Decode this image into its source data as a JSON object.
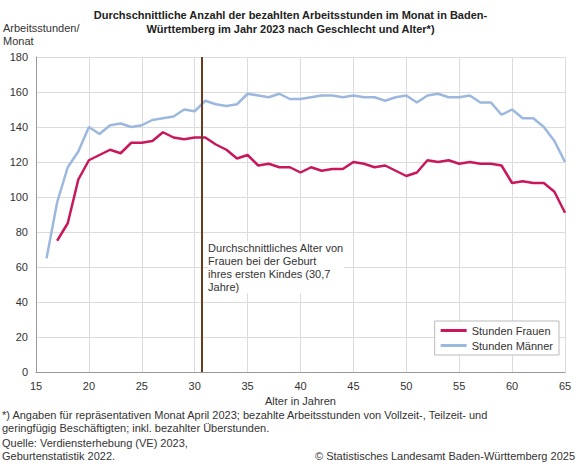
{
  "chart_data": {
    "type": "line",
    "title": "Durchschnittliche Anzahl der bezahlten Arbeitsstunden im Monat in Baden-\nWürttemberg im Jahr 2023 nach Geschlecht und Alter*)",
    "y_label": "Arbeitsstunden/\nMonat",
    "x_label": "Alter in Jahren",
    "x": [
      16,
      17,
      18,
      19,
      20,
      21,
      22,
      23,
      24,
      25,
      26,
      27,
      28,
      29,
      30,
      31,
      32,
      33,
      34,
      35,
      36,
      37,
      38,
      39,
      40,
      41,
      42,
      43,
      44,
      45,
      46,
      47,
      48,
      49,
      50,
      51,
      52,
      53,
      54,
      55,
      56,
      57,
      58,
      59,
      60,
      61,
      62,
      63,
      64,
      65
    ],
    "series": [
      {
        "name": "Stunden Frauen",
        "color": "#c8175d",
        "values": [
          null,
          75,
          85,
          110,
          121,
          124,
          127,
          125,
          131,
          131,
          132,
          137,
          134,
          133,
          134,
          134,
          130,
          127,
          122,
          124,
          118,
          119,
          117,
          117,
          114,
          117,
          115,
          116,
          116,
          120,
          119,
          117,
          118,
          115,
          112,
          114,
          121,
          120,
          121,
          119,
          120,
          119,
          119,
          118,
          108,
          109,
          108,
          108,
          103,
          91
        ]
      },
      {
        "name": "Stunden Männer",
        "color": "#9db8df",
        "values": [
          65,
          97,
          117,
          126,
          140,
          136,
          141,
          142,
          140,
          141,
          144,
          145,
          146,
          150,
          149,
          155,
          153,
          152,
          153,
          159,
          158,
          157,
          159,
          156,
          156,
          157,
          158,
          158,
          157,
          158,
          157,
          157,
          155,
          157,
          158,
          154,
          158,
          159,
          157,
          157,
          158,
          154,
          154,
          147,
          150,
          145,
          145,
          140,
          132,
          120
        ]
      }
    ],
    "xlim": [
      15,
      65
    ],
    "xticks": [
      15,
      20,
      25,
      30,
      35,
      40,
      45,
      50,
      55,
      60,
      65
    ],
    "ylim": [
      0,
      180
    ],
    "yticks": [
      0,
      20,
      40,
      60,
      80,
      100,
      120,
      140,
      160,
      180
    ],
    "grid": true,
    "legend": "lower right",
    "annotations": [
      {
        "x": 30.7,
        "color": "#6b3a1f",
        "text": "Durchschnittliches Alter von\nFrauen bei der Geburt\nihres ersten Kindes (30,7\nJahre)"
      }
    ],
    "footnote": "*) Angaben für repräsentativen Monat April 2023; bezahlte Arbeitsstunden von Vollzeit-, Teilzeit- und\ngeringfügig Beschäftigten; inkl. bezahlter Überstunden.",
    "source": "Quelle: Verdiensterhebung (VE) 2023,\nGeburtenstatistik 2022.",
    "copyright": "© Statistisches Landesamt Baden-Württemberg 2025"
  }
}
